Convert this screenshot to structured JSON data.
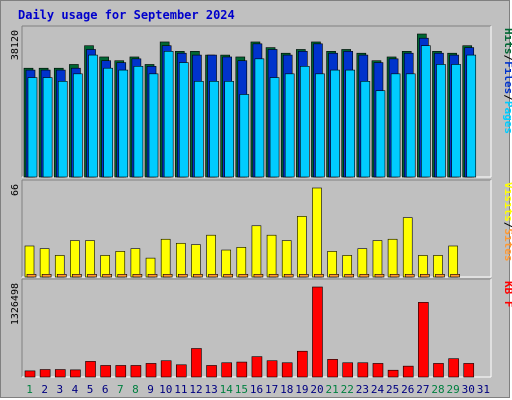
{
  "title": "Daily usage for September 2024",
  "colors": {
    "title": "#0000cc",
    "hits": "#006633",
    "files": "#0033cc",
    "pages": "#00ccff",
    "visits": "#ffff00",
    "sites": "#ff9933",
    "kbytes": "#ff0000",
    "panel_bg": "#c0c0c0",
    "weekend_label": "#008040",
    "weekday_label": "#000080"
  },
  "chart_data": [
    {
      "type": "bar",
      "title": "Daily usage for September 2024",
      "categories": [
        "1",
        "2",
        "3",
        "4",
        "5",
        "6",
        "7",
        "8",
        "9",
        "10",
        "11",
        "12",
        "13",
        "14",
        "15",
        "16",
        "17",
        "18",
        "19",
        "20",
        "21",
        "22",
        "23",
        "24",
        "25",
        "26",
        "27",
        "28",
        "29",
        "30",
        "31"
      ],
      "weekend_days": [
        1,
        7,
        8,
        14,
        15,
        21,
        22,
        28,
        29
      ],
      "ymax_label": "38120",
      "ymax": 38120,
      "ylabel_parts": [
        "Pages",
        "/",
        "Files",
        "/",
        "Hits"
      ],
      "series": [
        {
          "name": "Hits",
          "values": [
            29000,
            29000,
            29000,
            30000,
            35000,
            32000,
            31000,
            32000,
            30000,
            36000,
            33500,
            33500,
            32500,
            32500,
            32000,
            36000,
            34500,
            33000,
            34000,
            36000,
            33500,
            34000,
            33000,
            31000,
            32000,
            33500,
            38120,
            33500,
            33000,
            35000,
            0
          ]
        },
        {
          "name": "Files",
          "values": [
            28500,
            28500,
            28500,
            29000,
            34000,
            31000,
            30500,
            31500,
            29500,
            35000,
            33000,
            32500,
            32500,
            32000,
            31000,
            35500,
            34000,
            32500,
            33500,
            35500,
            33000,
            33500,
            32500,
            30500,
            31500,
            33000,
            37000,
            33000,
            32500,
            34500,
            0
          ]
        },
        {
          "name": "Pages",
          "values": [
            26500,
            26500,
            25500,
            27500,
            32500,
            29000,
            28500,
            29500,
            27500,
            33500,
            30500,
            25500,
            25500,
            25500,
            22000,
            31500,
            26500,
            27500,
            29500,
            27500,
            28500,
            28500,
            25500,
            23000,
            27500,
            27500,
            35000,
            30000,
            30000,
            32500,
            0
          ]
        }
      ]
    },
    {
      "type": "bar",
      "ymax_label": "66",
      "ymax": 66,
      "ylabel_parts": [
        "Sites",
        "/",
        "Visits"
      ],
      "series": [
        {
          "name": "Visits",
          "values": [
            23,
            21,
            16,
            27,
            27,
            16,
            19,
            21,
            14,
            28,
            25,
            24,
            31,
            20,
            22,
            38,
            31,
            27,
            45,
            66,
            19,
            16,
            21,
            27,
            28,
            44,
            16,
            16,
            23,
            0,
            0
          ]
        },
        {
          "name": "Sites",
          "values": [
            2,
            2,
            2,
            2,
            2,
            2,
            2,
            2,
            2,
            2,
            2,
            2,
            2,
            2,
            2,
            2,
            2,
            2,
            2,
            2,
            2,
            2,
            2,
            2,
            2,
            2,
            2,
            2,
            2,
            0,
            0
          ]
        }
      ]
    },
    {
      "type": "bar",
      "ymax_label": "1326498",
      "ymax": 1326498,
      "ylabel_parts": [
        "KB F"
      ],
      "series": [
        {
          "name": "KB F",
          "values": [
            90000,
            110000,
            110000,
            105000,
            230000,
            170000,
            170000,
            170000,
            200000,
            240000,
            180000,
            420000,
            170000,
            210000,
            220000,
            300000,
            240000,
            210000,
            380000,
            1326498,
            260000,
            210000,
            210000,
            200000,
            100000,
            160000,
            1100000,
            200000,
            270000,
            200000,
            0
          ]
        }
      ]
    }
  ]
}
